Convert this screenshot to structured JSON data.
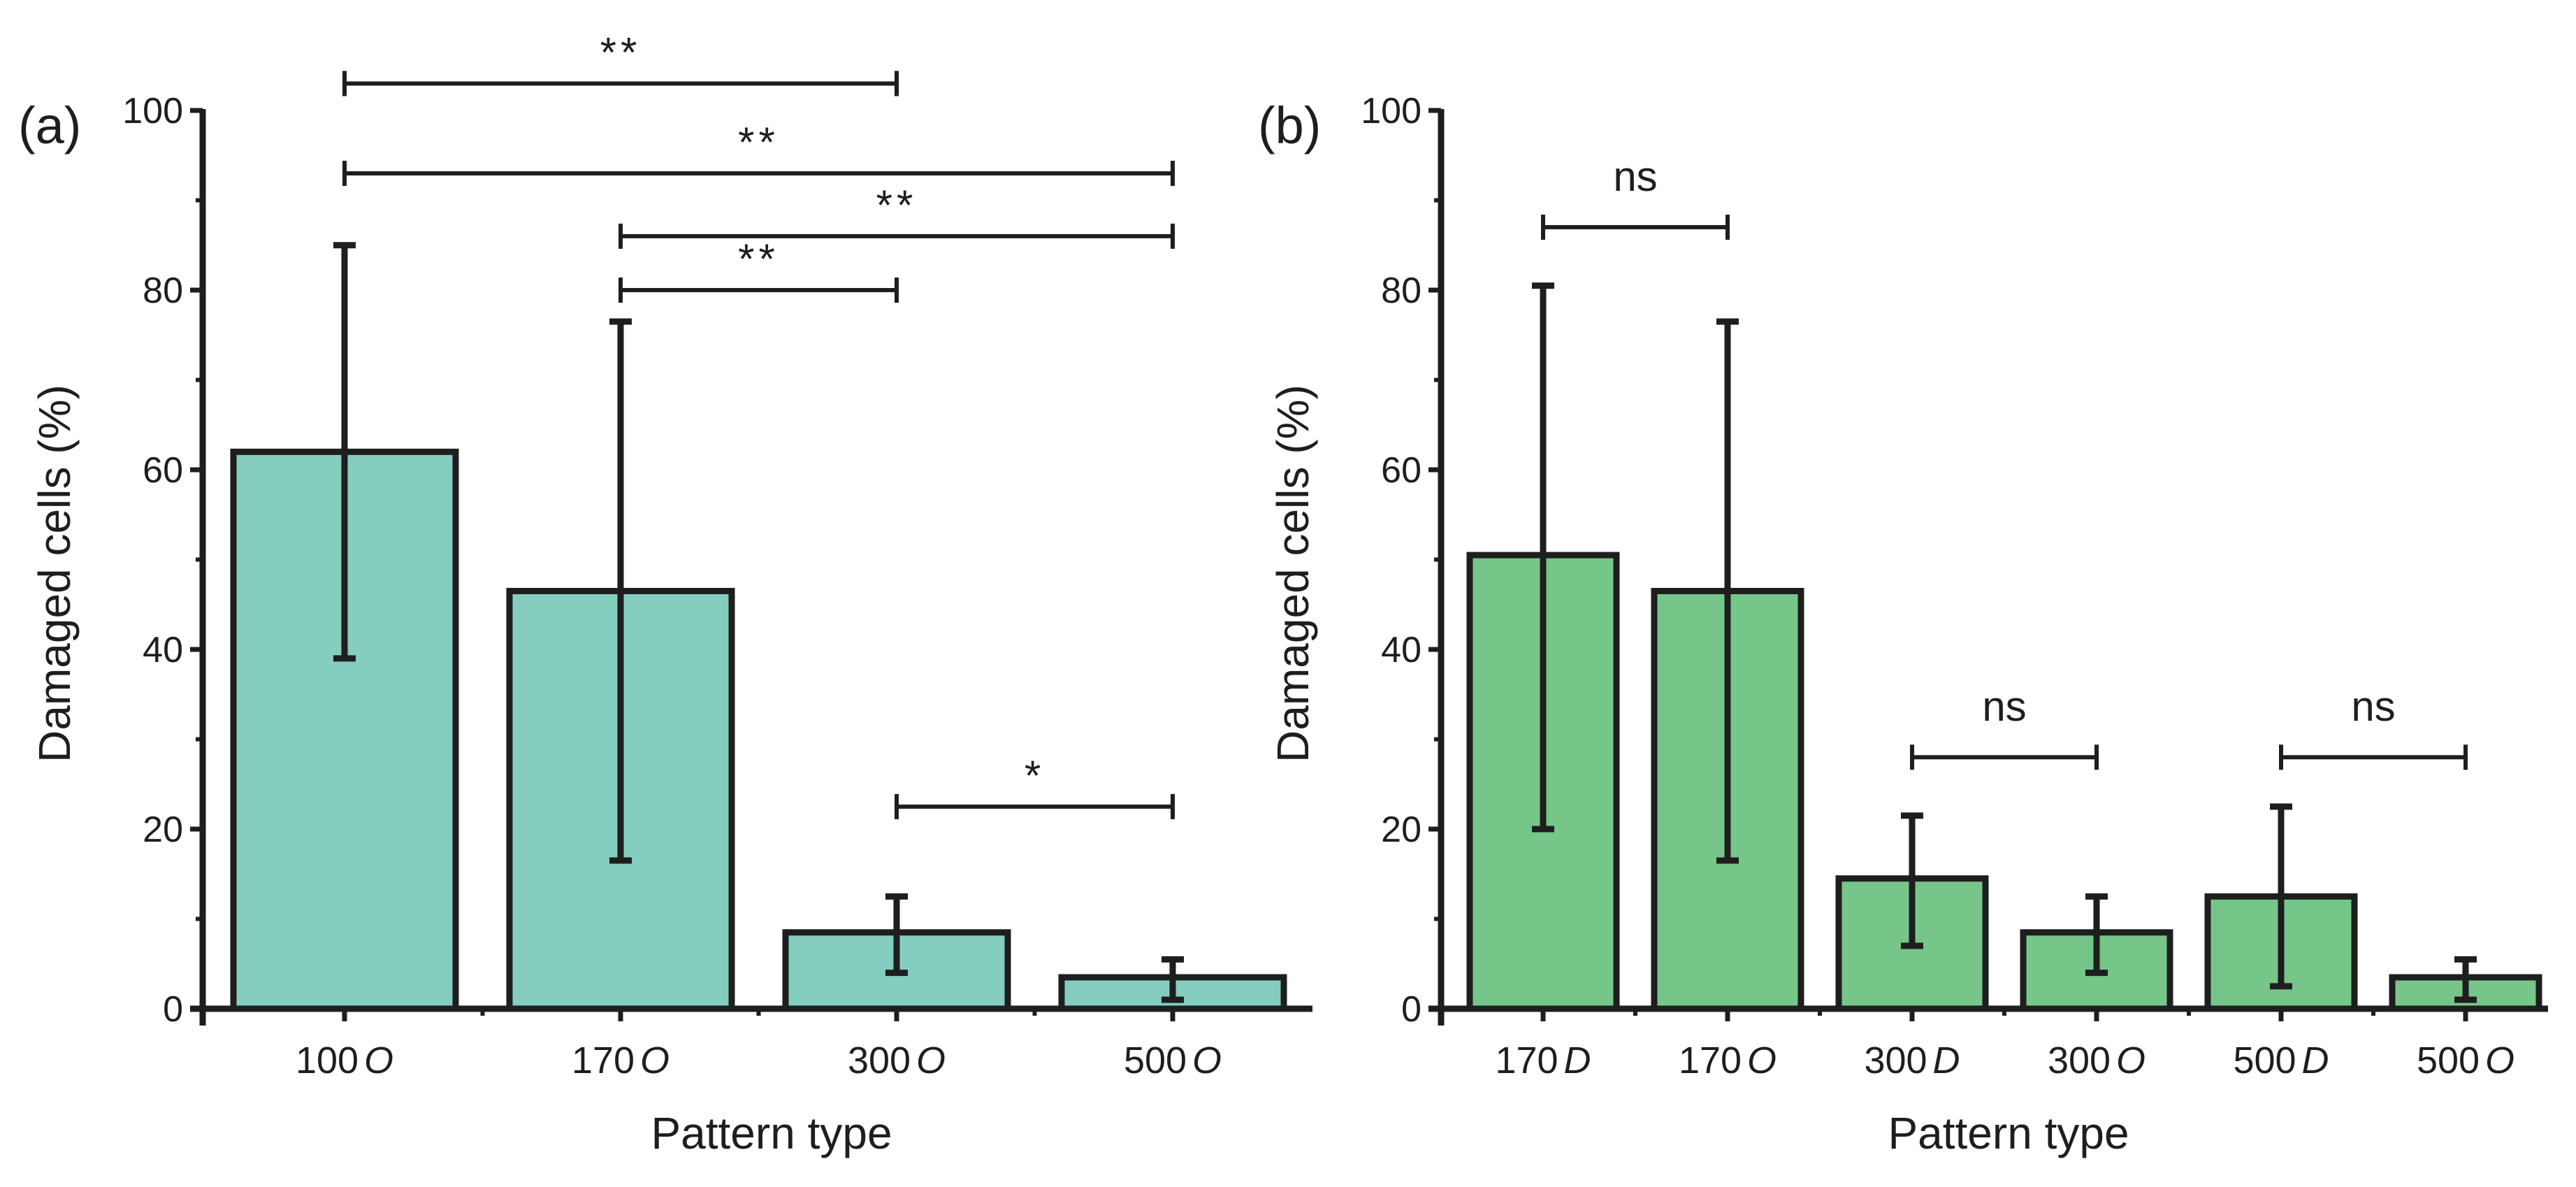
{
  "chart_data": [
    {
      "panel": "(a)",
      "type": "bar",
      "categories": [
        {
          "num": "100",
          "suffix": "O"
        },
        {
          "num": "170",
          "suffix": "O"
        },
        {
          "num": "300",
          "suffix": "O"
        },
        {
          "num": "500",
          "suffix": "O"
        }
      ],
      "values": [
        62,
        46.5,
        8.5,
        3.5
      ],
      "errors": [
        {
          "low": 39,
          "high": 85
        },
        {
          "low": 16.5,
          "high": 76.5
        },
        {
          "low": 4,
          "high": 12.5
        },
        {
          "low": 1,
          "high": 5.5
        }
      ],
      "xlabel": "Pattern type",
      "ylabel": "Damaged cells (%)",
      "ylim": [
        0,
        100
      ],
      "yticks": [
        0,
        20,
        40,
        60,
        80,
        100
      ],
      "bar_color": "#84cdbf",
      "significance": [
        {
          "from": 0,
          "to": 2,
          "label": "**",
          "level": 103
        },
        {
          "from": 0,
          "to": 3,
          "label": "**",
          "level": 93
        },
        {
          "from": 1,
          "to": 3,
          "label": "**",
          "level": 86
        },
        {
          "from": 1,
          "to": 2,
          "label": "**",
          "level": 80
        },
        {
          "from": 2,
          "to": 3,
          "label": "*",
          "level": 22.5
        }
      ]
    },
    {
      "panel": "(b)",
      "type": "bar",
      "categories": [
        {
          "num": "170",
          "suffix": "D"
        },
        {
          "num": "170",
          "suffix": "O"
        },
        {
          "num": "300",
          "suffix": "D"
        },
        {
          "num": "300",
          "suffix": "O"
        },
        {
          "num": "500",
          "suffix": "D"
        },
        {
          "num": "500",
          "suffix": "O"
        }
      ],
      "values": [
        50.5,
        46.5,
        14.5,
        8.5,
        12.5,
        3.5
      ],
      "errors": [
        {
          "low": 20,
          "high": 80.5
        },
        {
          "low": 16.5,
          "high": 76.5
        },
        {
          "low": 7,
          "high": 21.5
        },
        {
          "low": 4,
          "high": 12.5
        },
        {
          "low": 2.5,
          "high": 22.5
        },
        {
          "low": 1,
          "high": 5.5
        }
      ],
      "xlabel": "Pattern type",
      "ylabel": "Damaged cells (%)",
      "ylim": [
        0,
        100
      ],
      "yticks": [
        0,
        20,
        40,
        60,
        80,
        100
      ],
      "bar_color": "#76c68a",
      "significance": [
        {
          "from": 0,
          "to": 1,
          "label": "ns",
          "level": 87
        },
        {
          "from": 2,
          "to": 3,
          "label": "ns",
          "level": 28
        },
        {
          "from": 4,
          "to": 5,
          "label": "ns",
          "level": 28
        }
      ]
    }
  ]
}
